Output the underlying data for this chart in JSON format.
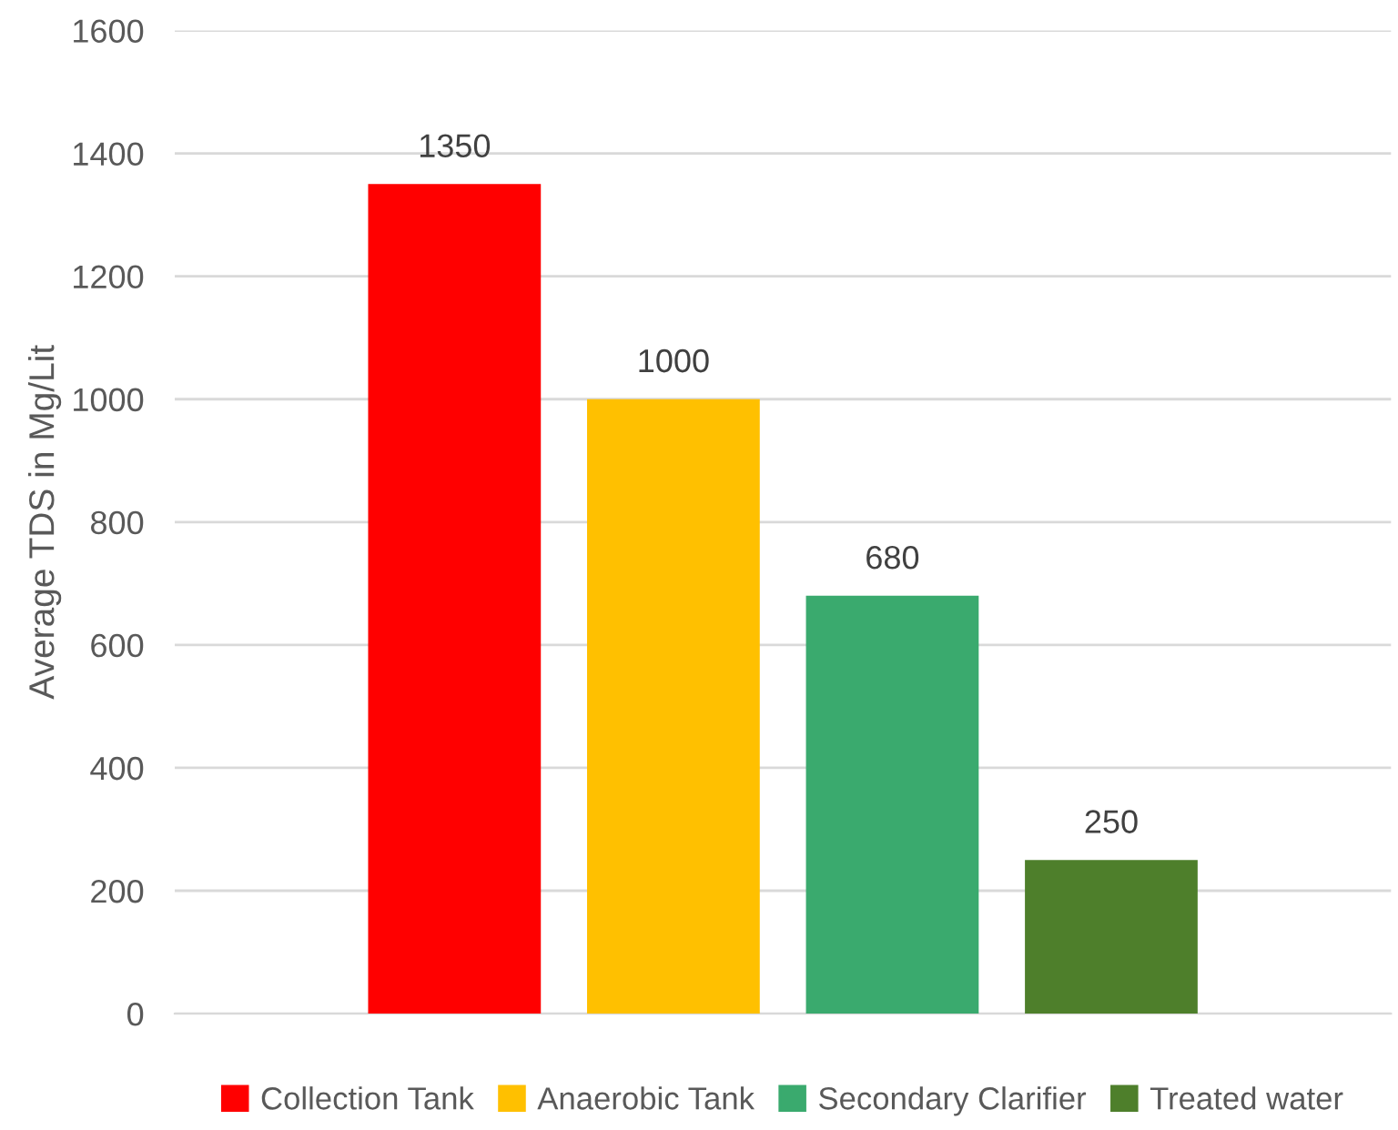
{
  "chart_data": {
    "type": "bar",
    "ylabel": "Average TDS in Mg/Lit",
    "categories": [
      null
    ],
    "series": [
      {
        "name": "Collection Tank",
        "color": "#ff0000",
        "values": [
          1350
        ]
      },
      {
        "name": "Anaerobic Tank",
        "color": "#ffc000",
        "values": [
          1000
        ]
      },
      {
        "name": "Secondary Clarifier",
        "color": "#3aaa6e",
        "values": [
          680
        ]
      },
      {
        "name": "Treated water",
        "color": "#4e7f2b",
        "values": [
          250
        ]
      }
    ],
    "ylim": [
      0,
      1600
    ],
    "yticks": [
      0,
      200,
      400,
      600,
      800,
      1000,
      1200,
      1400,
      1600
    ],
    "grid": "y",
    "legend": "bottom",
    "data_labels": true
  }
}
